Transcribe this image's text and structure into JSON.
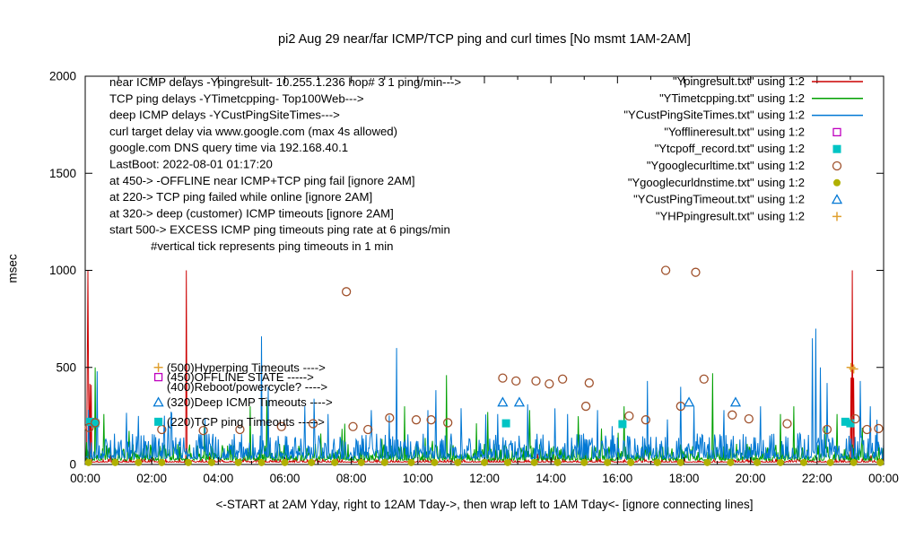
{
  "chart_data": {
    "type": "line",
    "title": "pi2 Aug 29  near/far ICMP/TCP ping and curl times [No msmt 1AM-2AM]",
    "xlabel": "<-START at 2AM Yday, right to 12AM Tday->, then wrap left to 1AM Tday<- [ignore connecting lines]",
    "ylabel": "msec",
    "ylim": [
      0,
      2000
    ],
    "xlim": [
      0,
      24
    ],
    "yticks": [
      0,
      500,
      1000,
      1500,
      2000
    ],
    "xtick_hours": [
      0,
      2,
      4,
      6,
      8,
      10,
      12,
      14,
      16,
      18,
      20,
      22,
      24
    ],
    "xtick_labels": [
      "00:00",
      "02:00",
      "04:00",
      "06:00",
      "08:00",
      "10:00",
      "12:00",
      "14:00",
      "16:00",
      "18:00",
      "20:00",
      "22:00",
      "00:00"
    ],
    "grid": false,
    "legend_position": "top-right",
    "legend": [
      {
        "label": "\"Ypingresult.txt\" using 1:2",
        "style": "line",
        "color": "#cc0000"
      },
      {
        "label": "\"YTimetcpping.txt\" using 1:2",
        "style": "line",
        "color": "#00a000"
      },
      {
        "label": "\"YCustPingSiteTimes.txt\" using 1:2",
        "style": "line",
        "color": "#0077d4"
      },
      {
        "label": "\"Yofflineresult.txt\" using 1:2",
        "style": "open-square",
        "color": "#bf00bf"
      },
      {
        "label": "\"Ytcpoff_record.txt\" using 1:2",
        "style": "filled-square",
        "color": "#00c4c4"
      },
      {
        "label": "\"Ygooglecurltime.txt\" using 1:2",
        "style": "open-circle",
        "color": "#a0522d"
      },
      {
        "label": "\"Ygooglecurldnstime.txt\" using 1:2",
        "style": "filled-circle",
        "color": "#b0b000"
      },
      {
        "label": "\"YCustPingTimeout.txt\" using 1:2",
        "style": "open-triangle",
        "color": "#0077d4"
      },
      {
        "label": "\"YHPpingresult.txt\" using 1:2",
        "style": "plus",
        "color": "#e0a030"
      }
    ],
    "series": [
      {
        "name": "Ypingresult",
        "type": "line",
        "color": "#cc0000",
        "seed": 7,
        "baseline": 12,
        "noise": 20,
        "skew": 5,
        "blocks": [
          [
            0.04,
            0.18,
            430
          ],
          [
            23.0,
            23.1,
            470
          ]
        ],
        "spikes": [
          [
            0.07,
            1000
          ],
          [
            3.03,
            1000
          ],
          [
            23.05,
            1000
          ]
        ]
      },
      {
        "name": "YTimetcpping",
        "type": "line",
        "color": "#00a000",
        "seed": 13,
        "baseline": 22,
        "noise": 85,
        "skew": 3.2,
        "spikes": [
          [
            0.3,
            500
          ],
          [
            0.55,
            260
          ],
          [
            4.95,
            300
          ],
          [
            5.45,
            330
          ],
          [
            7.8,
            210
          ],
          [
            9.6,
            300
          ],
          [
            10.85,
            460
          ],
          [
            12.1,
            270
          ],
          [
            13.35,
            280
          ],
          [
            16.2,
            300
          ],
          [
            18.85,
            470
          ],
          [
            20.9,
            260
          ],
          [
            21.3,
            300
          ],
          [
            22.6,
            260
          ]
        ]
      },
      {
        "name": "YCustPingSiteTimes",
        "type": "line",
        "color": "#0077d4",
        "seed": 29,
        "baseline": 30,
        "noise": 130,
        "skew": 2.6,
        "spikes": [
          [
            0.35,
            480
          ],
          [
            1.6,
            250
          ],
          [
            2.5,
            220
          ],
          [
            3.6,
            240
          ],
          [
            5.3,
            660
          ],
          [
            5.5,
            400
          ],
          [
            6.6,
            300
          ],
          [
            7.3,
            260
          ],
          [
            8.6,
            280
          ],
          [
            9.35,
            600
          ],
          [
            10.3,
            280
          ],
          [
            11.3,
            290
          ],
          [
            12.4,
            260
          ],
          [
            13.3,
            310
          ],
          [
            14.5,
            260
          ],
          [
            15.4,
            280
          ],
          [
            16.9,
            430
          ],
          [
            17.9,
            400
          ],
          [
            18.3,
            300
          ],
          [
            19.2,
            280
          ],
          [
            20.3,
            300
          ],
          [
            21.85,
            650
          ],
          [
            21.95,
            700
          ],
          [
            22.1,
            500
          ],
          [
            22.3,
            420
          ],
          [
            23.3,
            430
          ],
          [
            23.6,
            300
          ]
        ]
      },
      {
        "name": "Yofflineresult",
        "type": "points",
        "marker": "open-square",
        "color": "#bf00bf",
        "points": []
      },
      {
        "name": "Ytcpoff_record",
        "type": "points",
        "marker": "filled-square",
        "color": "#00c4c4",
        "points": [
          [
            0.15,
            220
          ],
          [
            0.3,
            212
          ],
          [
            12.65,
            212
          ],
          [
            16.15,
            208
          ],
          [
            22.85,
            220
          ],
          [
            23.0,
            212
          ]
        ]
      },
      {
        "name": "Ygooglecurltime",
        "type": "points",
        "marker": "open-circle",
        "color": "#a0522d",
        "points": [
          [
            0.12,
            190
          ],
          [
            0.3,
            215
          ],
          [
            2.3,
            180
          ],
          [
            3.55,
            175
          ],
          [
            4.65,
            180
          ],
          [
            5.9,
            195
          ],
          [
            6.85,
            210
          ],
          [
            7.85,
            890
          ],
          [
            8.05,
            195
          ],
          [
            8.5,
            180
          ],
          [
            9.15,
            240
          ],
          [
            9.95,
            230
          ],
          [
            10.4,
            230
          ],
          [
            10.9,
            215
          ],
          [
            12.55,
            445
          ],
          [
            12.95,
            430
          ],
          [
            13.55,
            430
          ],
          [
            13.95,
            415
          ],
          [
            14.35,
            440
          ],
          [
            15.05,
            300
          ],
          [
            15.15,
            420
          ],
          [
            16.35,
            250
          ],
          [
            16.85,
            230
          ],
          [
            17.45,
            1000
          ],
          [
            17.9,
            300
          ],
          [
            18.35,
            990
          ],
          [
            18.6,
            440
          ],
          [
            19.45,
            255
          ],
          [
            19.95,
            235
          ],
          [
            21.1,
            210
          ],
          [
            22.3,
            180
          ],
          [
            23.15,
            235
          ],
          [
            23.5,
            180
          ],
          [
            23.85,
            185
          ]
        ]
      },
      {
        "name": "Ygooglecurldnstime",
        "type": "points",
        "marker": "filled-circle",
        "color": "#b0b000",
        "points": [
          [
            0.1,
            10
          ],
          [
            0.9,
            10
          ],
          [
            1.6,
            10
          ],
          [
            2.3,
            10
          ],
          [
            3.1,
            10
          ],
          [
            3.8,
            10
          ],
          [
            4.6,
            10
          ],
          [
            5.3,
            10
          ],
          [
            6.0,
            10
          ],
          [
            6.8,
            10
          ],
          [
            7.5,
            10
          ],
          [
            8.3,
            10
          ],
          [
            9.0,
            10
          ],
          [
            9.8,
            10
          ],
          [
            10.5,
            10
          ],
          [
            11.2,
            10
          ],
          [
            12.0,
            10
          ],
          [
            12.7,
            10
          ],
          [
            13.5,
            10
          ],
          [
            14.2,
            10
          ],
          [
            15.0,
            10
          ],
          [
            15.7,
            10
          ],
          [
            16.4,
            10
          ],
          [
            17.2,
            10
          ],
          [
            17.9,
            10
          ],
          [
            18.7,
            10
          ],
          [
            19.4,
            10
          ],
          [
            20.2,
            10
          ],
          [
            20.9,
            10
          ],
          [
            21.6,
            10
          ],
          [
            22.4,
            10
          ],
          [
            23.1,
            10
          ],
          [
            23.9,
            10
          ]
        ]
      },
      {
        "name": "YCustPingTimeout",
        "type": "points",
        "marker": "open-triangle",
        "color": "#0077d4",
        "points": [
          [
            12.55,
            320
          ],
          [
            13.05,
            320
          ],
          [
            18.15,
            320
          ],
          [
            19.55,
            320
          ]
        ]
      },
      {
        "name": "YHPpingresult",
        "type": "points",
        "marker": "plus",
        "color": "#e0a030",
        "points": [
          [
            23.02,
            500
          ],
          [
            23.1,
            492
          ]
        ]
      }
    ],
    "annotations": {
      "info_lines": [
        "near ICMP delays -Ypingresult- 10.255.1.236 hop# 3 1 ping/min--->",
        "TCP ping delays -YTimetcpping- Top100Web--->",
        "deep ICMP delays -YCustPingSiteTimes--->",
        "curl target delay via www.google.com (max 4s allowed)",
        "google.com DNS query time via 192.168.40.1",
        "LastBoot: 2022-08-01 01:17:20",
        "at 450-> -OFFLINE near ICMP+TCP ping fail [ignore 2AM]",
        "at 220-> TCP ping failed while online [ignore 2AM]",
        "at 320-> deep (customer) ICMP timeouts [ignore 2AM]",
        "start 500-> EXCESS ICMP ping timeouts ping rate at 6 pings/min",
        "#vertical tick represents ping timeouts in 1 min"
      ],
      "level_labels": [
        {
          "y": 500,
          "text": "(500)Hyperping Timeouts ---->",
          "marker": "plus",
          "marker_color": "#e0a030"
        },
        {
          "y": 450,
          "text": "(450)OFFLINE STATE ----->",
          "marker": "open-square",
          "marker_color": "#bf00bf"
        },
        {
          "y": 400,
          "text": "(400)Reboot/powercycle? ---->",
          "marker": null,
          "marker_color": null
        },
        {
          "y": 320,
          "text": "(320)Deep ICMP Timeouts ---->",
          "marker": "open-triangle",
          "marker_color": "#0077d4"
        },
        {
          "y": 220,
          "text": "(220)TCP ping Timeouts ----->",
          "marker": "filled-square",
          "marker_color": "#00c4c4"
        }
      ]
    }
  }
}
